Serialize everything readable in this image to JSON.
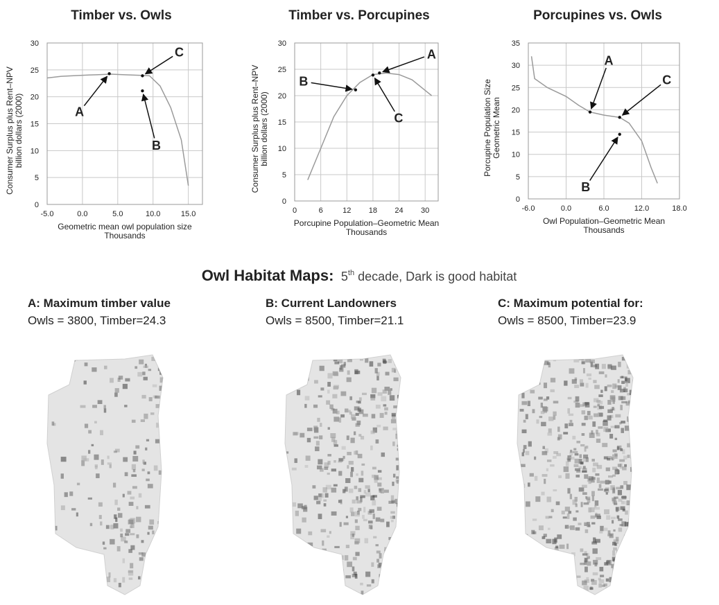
{
  "chart_data": [
    {
      "type": "line",
      "title": "Timber vs. Owls",
      "xlabel": [
        "Geometric mean owl population size",
        "Thousands"
      ],
      "ylabel": [
        "Consumer Surplus plus Rent–NPV",
        "billion dollars (2000)"
      ],
      "x": [
        -5,
        -3,
        0,
        2,
        4,
        6,
        8,
        9.5,
        11,
        12.5,
        14,
        15
      ],
      "series": [
        {
          "color": "#9a9a9a",
          "values": [
            23.5,
            23.8,
            24,
            24.1,
            24.2,
            24.1,
            24,
            23.9,
            22,
            18,
            12,
            3.5
          ]
        }
      ],
      "xlim": [
        -5,
        17
      ],
      "ylim": [
        0,
        30
      ],
      "xticks": [
        {
          "value": -5,
          "label": "-5.0"
        },
        {
          "value": 0,
          "label": "0.0"
        },
        {
          "value": 5,
          "label": "5.0"
        },
        {
          "value": 10,
          "label": "10.0"
        },
        {
          "value": 15,
          "label": "15.0"
        }
      ],
      "yticks": [
        0,
        5,
        10,
        15,
        20,
        25,
        30
      ],
      "grid": true,
      "annotations": [
        {
          "text": "A",
          "x": 3.8,
          "y": 24.3
        },
        {
          "text": "B",
          "x": 8.5,
          "y": 21.1
        },
        {
          "text": "C",
          "x": 8.5,
          "y": 23.9
        }
      ]
    },
    {
      "type": "line",
      "title": "Timber vs. Porcupines",
      "xlabel": [
        "Porcupine Population–Geometric Mean",
        "Thousands"
      ],
      "ylabel": [
        "Consumer Surplus plus Rent–NPV",
        "billion dollars (2000)"
      ],
      "x": [
        3,
        6,
        9,
        12,
        15,
        18,
        21,
        24,
        27,
        30,
        31.5
      ],
      "series": [
        {
          "color": "#9a9a9a",
          "values": [
            4,
            10,
            16,
            20,
            22.5,
            24,
            24.3,
            24,
            23,
            21,
            20
          ]
        }
      ],
      "xlim": [
        0,
        33
      ],
      "ylim": [
        0,
        30
      ],
      "xticks": [
        0,
        6,
        12,
        18,
        24,
        30
      ],
      "yticks": [
        0,
        5,
        10,
        15,
        20,
        25,
        30
      ],
      "grid": true,
      "annotations": [
        {
          "text": "A",
          "x": 19.5,
          "y": 24.3
        },
        {
          "text": "B",
          "x": 14,
          "y": 21.1
        },
        {
          "text": "C",
          "x": 18,
          "y": 23.9
        }
      ]
    },
    {
      "type": "line",
      "title": "Porcupines vs. Owls",
      "xlabel": [
        "Owl Population–Geometric Mean",
        "Thousands"
      ],
      "ylabel": [
        "Porcupine Population Size",
        "Geometric Mean"
      ],
      "x": [
        -5.5,
        -5,
        -3,
        0,
        2,
        3.8,
        6,
        8.5,
        10,
        12,
        13.5,
        14.5
      ],
      "series": [
        {
          "color": "#9a9a9a",
          "values": [
            32,
            27,
            25,
            23,
            21,
            19.5,
            18.8,
            18.3,
            17,
            13,
            7,
            3.5
          ]
        }
      ],
      "xlim": [
        -6,
        18
      ],
      "ylim": [
        0,
        35
      ],
      "xticks": [
        {
          "value": -6,
          "label": "-6.0"
        },
        {
          "value": 0,
          "label": "0.0"
        },
        {
          "value": 6,
          "label": "6.0"
        },
        {
          "value": 12,
          "label": "12.0"
        },
        {
          "value": 18,
          "label": "18.0"
        }
      ],
      "yticks": [
        0,
        5,
        10,
        15,
        20,
        25,
        30,
        35
      ],
      "grid": true,
      "annotations": [
        {
          "text": "A",
          "x": 3.8,
          "y": 19.5
        },
        {
          "text": "C",
          "x": 8.5,
          "y": 18.3
        },
        {
          "text": "B",
          "x": 8.5,
          "y": 14.5
        }
      ]
    }
  ],
  "maps": {
    "title": "Owl Habitat Maps:",
    "subtitle_num": "5",
    "subtitle_sup": "th",
    "subtitle_rest": " decade, Dark is good habitat",
    "panels": [
      {
        "heading": "A: Maximum timber value",
        "stats": "Owls = 3800, Timber=24.3"
      },
      {
        "heading": "B: Current Landowners",
        "stats": "Owls = 8500, Timber=21.1"
      },
      {
        "heading": "C: Maximum potential for:",
        "stats": "Owls = 8500, Timber=23.9"
      }
    ]
  }
}
